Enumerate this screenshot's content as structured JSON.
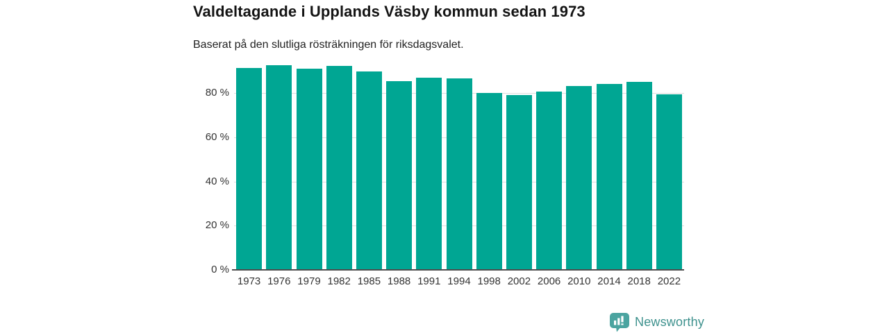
{
  "chart_data": {
    "type": "bar",
    "title": "Valdeltagande i Upplands Väsby kommun sedan 1973",
    "subtitle": "Baserat på den slutliga rösträkningen för riksdagsvalet.",
    "categories": [
      "1973",
      "1976",
      "1979",
      "1982",
      "1985",
      "1988",
      "1991",
      "1994",
      "1998",
      "2002",
      "2006",
      "2010",
      "2014",
      "2018",
      "2022"
    ],
    "values": [
      91.4,
      92.6,
      91.0,
      92.1,
      89.6,
      85.2,
      86.9,
      86.7,
      80.0,
      79.0,
      80.6,
      83.0,
      84.1,
      84.9,
      79.5
    ],
    "xlabel": "",
    "ylabel": "",
    "ylim": [
      0,
      100
    ],
    "yticks": [
      {
        "value": 0,
        "label": "0 %"
      },
      {
        "value": 20,
        "label": "20 %"
      },
      {
        "value": 40,
        "label": "40 %"
      },
      {
        "value": 60,
        "label": "60 %"
      },
      {
        "value": 80,
        "label": "80 %"
      }
    ],
    "grid": "horizontal",
    "legend": "none"
  },
  "colors": {
    "bar": "#00a693",
    "grid": "#dedede",
    "axis": "#4d4d4d",
    "tick_text": "#333333",
    "title_text": "#141414",
    "logo_icon": "#4ba4a0",
    "logo_text": "#3d918d"
  },
  "footer": {
    "brand": "Newsworthy",
    "icon": "bar-chart-speech-bubble-icon"
  }
}
